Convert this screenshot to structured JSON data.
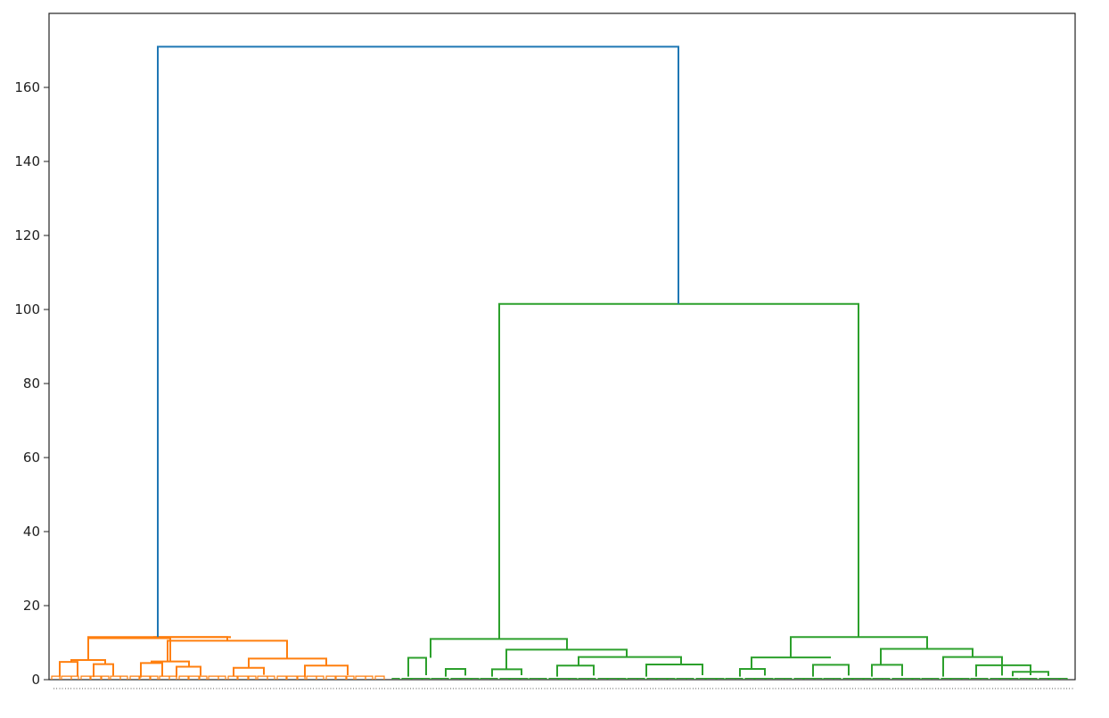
{
  "chart_data": {
    "type": "dendrogram",
    "title": "",
    "xlabel": "",
    "ylabel": "",
    "ylim": [
      0,
      180
    ],
    "yticks": [
      0,
      20,
      40,
      60,
      80,
      100,
      120,
      140,
      160
    ],
    "grid": false,
    "legend": null,
    "colors": {
      "root": "#1f77b4",
      "cluster_1": "#ff7f0e",
      "cluster_2": "#2ca02c"
    },
    "merge_heights": {
      "root": 171,
      "right_branch": 101.5,
      "cluster_1_top": 11.5,
      "cluster_2_left_top": 11,
      "cluster_2_right_top": 11.5
    },
    "leaf_labels_legible": false
  }
}
